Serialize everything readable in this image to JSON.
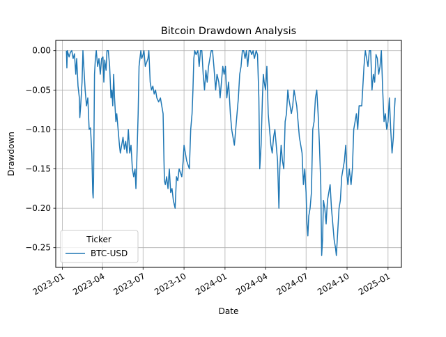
{
  "chart_data": {
    "type": "line",
    "title": "Bitcoin Drawdown Analysis",
    "xlabel": "Date",
    "ylabel": "Drawdown",
    "xlim": [
      "2022-12-17",
      "2025-01-31"
    ],
    "ylim": [
      -0.275,
      0.013
    ],
    "grid": true,
    "legend": {
      "title": "Ticker",
      "placement": "lower-left"
    },
    "x_ticks": [
      {
        "date": "2023-01-01",
        "label": "2023-01"
      },
      {
        "date": "2023-04-01",
        "label": "2023-04"
      },
      {
        "date": "2023-07-01",
        "label": "2023-07"
      },
      {
        "date": "2023-10-01",
        "label": "2023-10"
      },
      {
        "date": "2024-01-01",
        "label": "2024-01"
      },
      {
        "date": "2024-04-01",
        "label": "2024-04"
      },
      {
        "date": "2024-07-01",
        "label": "2024-07"
      },
      {
        "date": "2024-10-01",
        "label": "2024-10"
      },
      {
        "date": "2025-01-01",
        "label": "2025-01"
      }
    ],
    "y_ticks": [
      {
        "value": 0.0,
        "label": "0.00"
      },
      {
        "value": -0.05,
        "label": "−0.05"
      },
      {
        "value": -0.1,
        "label": "−0.10"
      },
      {
        "value": -0.15,
        "label": "−0.15"
      },
      {
        "value": -0.2,
        "label": "−0.20"
      },
      {
        "value": -0.25,
        "label": "−0.25"
      }
    ],
    "series": [
      {
        "name": "BTC-USD",
        "color": "#1f77b4",
        "points": [
          [
            "2023-01-10",
            0.0
          ],
          [
            "2023-01-11",
            -0.022
          ],
          [
            "2023-01-12",
            0.0
          ],
          [
            "2023-01-16",
            -0.008
          ],
          [
            "2023-01-19",
            -0.002
          ],
          [
            "2023-01-22",
            0.0
          ],
          [
            "2023-01-25",
            -0.01
          ],
          [
            "2023-01-28",
            -0.004
          ],
          [
            "2023-01-31",
            -0.03
          ],
          [
            "2023-02-02",
            -0.01
          ],
          [
            "2023-02-05",
            -0.045
          ],
          [
            "2023-02-08",
            -0.06
          ],
          [
            "2023-02-09",
            -0.085
          ],
          [
            "2023-02-11",
            -0.07
          ],
          [
            "2023-02-14",
            -0.04
          ],
          [
            "2023-02-16",
            0.0
          ],
          [
            "2023-02-18",
            -0.02
          ],
          [
            "2023-02-21",
            -0.05
          ],
          [
            "2023-02-24",
            -0.07
          ],
          [
            "2023-02-27",
            -0.06
          ],
          [
            "2023-03-02",
            -0.1
          ],
          [
            "2023-03-05",
            -0.098
          ],
          [
            "2023-03-08",
            -0.13
          ],
          [
            "2023-03-10",
            -0.18
          ],
          [
            "2023-03-11",
            -0.187
          ],
          [
            "2023-03-12",
            -0.16
          ],
          [
            "2023-03-14",
            -0.03
          ],
          [
            "2023-03-16",
            -0.01
          ],
          [
            "2023-03-18",
            0.0
          ],
          [
            "2023-03-21",
            -0.02
          ],
          [
            "2023-03-24",
            -0.01
          ],
          [
            "2023-03-27",
            -0.03
          ],
          [
            "2023-03-30",
            -0.01
          ],
          [
            "2023-04-02",
            -0.008
          ],
          [
            "2023-04-04",
            -0.04
          ],
          [
            "2023-04-06",
            -0.012
          ],
          [
            "2023-04-09",
            -0.025
          ],
          [
            "2023-04-11",
            0.0
          ],
          [
            "2023-04-14",
            0.0
          ],
          [
            "2023-04-17",
            -0.02
          ],
          [
            "2023-04-20",
            -0.06
          ],
          [
            "2023-04-22",
            -0.05
          ],
          [
            "2023-04-24",
            -0.07
          ],
          [
            "2023-04-26",
            -0.03
          ],
          [
            "2023-04-28",
            -0.06
          ],
          [
            "2023-05-01",
            -0.09
          ],
          [
            "2023-05-03",
            -0.08
          ],
          [
            "2023-05-06",
            -0.1
          ],
          [
            "2023-05-09",
            -0.12
          ],
          [
            "2023-05-11",
            -0.13
          ],
          [
            "2023-05-14",
            -0.12
          ],
          [
            "2023-05-17",
            -0.11
          ],
          [
            "2023-05-20",
            -0.125
          ],
          [
            "2023-05-23",
            -0.115
          ],
          [
            "2023-05-26",
            -0.13
          ],
          [
            "2023-05-29",
            -0.1
          ],
          [
            "2023-06-01",
            -0.13
          ],
          [
            "2023-06-04",
            -0.12
          ],
          [
            "2023-06-07",
            -0.15
          ],
          [
            "2023-06-10",
            -0.16
          ],
          [
            "2023-06-13",
            -0.15
          ],
          [
            "2023-06-15",
            -0.175
          ],
          [
            "2023-06-17",
            -0.14
          ],
          [
            "2023-06-20",
            -0.08
          ],
          [
            "2023-06-22",
            -0.02
          ],
          [
            "2023-06-24",
            -0.01
          ],
          [
            "2023-06-26",
            0.0
          ],
          [
            "2023-06-28",
            -0.01
          ],
          [
            "2023-07-01",
            -0.005
          ],
          [
            "2023-07-03",
            0.0
          ],
          [
            "2023-07-06",
            -0.02
          ],
          [
            "2023-07-09",
            -0.015
          ],
          [
            "2023-07-12",
            -0.01
          ],
          [
            "2023-07-14",
            0.0
          ],
          [
            "2023-07-17",
            -0.04
          ],
          [
            "2023-07-20",
            -0.05
          ],
          [
            "2023-07-23",
            -0.045
          ],
          [
            "2023-07-26",
            -0.055
          ],
          [
            "2023-07-29",
            -0.05
          ],
          [
            "2023-08-01",
            -0.06
          ],
          [
            "2023-08-05",
            -0.065
          ],
          [
            "2023-08-09",
            -0.06
          ],
          [
            "2023-08-12",
            -0.07
          ],
          [
            "2023-08-15",
            -0.08
          ],
          [
            "2023-08-17",
            -0.14
          ],
          [
            "2023-08-18",
            -0.165
          ],
          [
            "2023-08-20",
            -0.17
          ],
          [
            "2023-08-23",
            -0.16
          ],
          [
            "2023-08-26",
            -0.175
          ],
          [
            "2023-08-29",
            -0.15
          ],
          [
            "2023-09-01",
            -0.18
          ],
          [
            "2023-09-04",
            -0.175
          ],
          [
            "2023-09-07",
            -0.19
          ],
          [
            "2023-09-11",
            -0.2
          ],
          [
            "2023-09-14",
            -0.16
          ],
          [
            "2023-09-17",
            -0.165
          ],
          [
            "2023-09-20",
            -0.15
          ],
          [
            "2023-09-23",
            -0.155
          ],
          [
            "2023-09-26",
            -0.16
          ],
          [
            "2023-09-29",
            -0.14
          ],
          [
            "2023-10-01",
            -0.12
          ],
          [
            "2023-10-04",
            -0.13
          ],
          [
            "2023-10-07",
            -0.14
          ],
          [
            "2023-10-10",
            -0.145
          ],
          [
            "2023-10-13",
            -0.15
          ],
          [
            "2023-10-16",
            -0.1
          ],
          [
            "2023-10-19",
            -0.08
          ],
          [
            "2023-10-21",
            -0.05
          ],
          [
            "2023-10-23",
            -0.01
          ],
          [
            "2023-10-25",
            0.0
          ],
          [
            "2023-10-28",
            -0.005
          ],
          [
            "2023-11-01",
            0.0
          ],
          [
            "2023-11-04",
            -0.02
          ],
          [
            "2023-11-07",
            0.0
          ],
          [
            "2023-11-10",
            0.0
          ],
          [
            "2023-11-13",
            -0.03
          ],
          [
            "2023-11-16",
            -0.05
          ],
          [
            "2023-11-19",
            -0.025
          ],
          [
            "2023-11-22",
            -0.04
          ],
          [
            "2023-11-25",
            -0.02
          ],
          [
            "2023-11-28",
            -0.01
          ],
          [
            "2023-12-01",
            0.0
          ],
          [
            "2023-12-04",
            0.0
          ],
          [
            "2023-12-07",
            -0.02
          ],
          [
            "2023-12-11",
            -0.05
          ],
          [
            "2023-12-14",
            -0.03
          ],
          [
            "2023-12-18",
            -0.04
          ],
          [
            "2023-12-21",
            -0.06
          ],
          [
            "2023-12-24",
            -0.04
          ],
          [
            "2023-12-27",
            -0.02
          ],
          [
            "2023-12-30",
            -0.03
          ],
          [
            "2024-01-02",
            -0.02
          ],
          [
            "2024-01-05",
            -0.06
          ],
          [
            "2024-01-09",
            -0.04
          ],
          [
            "2024-01-11",
            -0.06
          ],
          [
            "2024-01-13",
            -0.08
          ],
          [
            "2024-01-16",
            -0.1
          ],
          [
            "2024-01-19",
            -0.11
          ],
          [
            "2024-01-22",
            -0.12
          ],
          [
            "2024-01-25",
            -0.1
          ],
          [
            "2024-01-28",
            -0.08
          ],
          [
            "2024-01-31",
            -0.06
          ],
          [
            "2024-02-03",
            -0.03
          ],
          [
            "2024-02-06",
            -0.02
          ],
          [
            "2024-02-09",
            0.0
          ],
          [
            "2024-02-12",
            0.0
          ],
          [
            "2024-02-15",
            -0.01
          ],
          [
            "2024-02-18",
            0.0
          ],
          [
            "2024-02-21",
            -0.02
          ],
          [
            "2024-02-24",
            0.0
          ],
          [
            "2024-02-27",
            0.0
          ],
          [
            "2024-03-01",
            -0.005
          ],
          [
            "2024-03-04",
            0.0
          ],
          [
            "2024-03-07",
            -0.01
          ],
          [
            "2024-03-11",
            0.0
          ],
          [
            "2024-03-14",
            -0.005
          ],
          [
            "2024-03-17",
            -0.06
          ],
          [
            "2024-03-19",
            -0.15
          ],
          [
            "2024-03-22",
            -0.12
          ],
          [
            "2024-03-25",
            -0.06
          ],
          [
            "2024-03-27",
            -0.03
          ],
          [
            "2024-03-29",
            -0.04
          ],
          [
            "2024-04-01",
            -0.05
          ],
          [
            "2024-04-04",
            -0.02
          ],
          [
            "2024-04-07",
            -0.08
          ],
          [
            "2024-04-10",
            -0.1
          ],
          [
            "2024-04-13",
            -0.12
          ],
          [
            "2024-04-16",
            -0.13
          ],
          [
            "2024-04-19",
            -0.11
          ],
          [
            "2024-04-22",
            -0.1
          ],
          [
            "2024-04-25",
            -0.12
          ],
          [
            "2024-04-28",
            -0.14
          ],
          [
            "2024-05-01",
            -0.2
          ],
          [
            "2024-05-03",
            -0.15
          ],
          [
            "2024-05-06",
            -0.12
          ],
          [
            "2024-05-09",
            -0.14
          ],
          [
            "2024-05-12",
            -0.15
          ],
          [
            "2024-05-15",
            -0.09
          ],
          [
            "2024-05-18",
            -0.08
          ],
          [
            "2024-05-21",
            -0.05
          ],
          [
            "2024-05-23",
            -0.06
          ],
          [
            "2024-05-26",
            -0.07
          ],
          [
            "2024-05-29",
            -0.08
          ],
          [
            "2024-06-01",
            -0.07
          ],
          [
            "2024-06-04",
            -0.05
          ],
          [
            "2024-06-07",
            -0.06
          ],
          [
            "2024-06-10",
            -0.07
          ],
          [
            "2024-06-13",
            -0.09
          ],
          [
            "2024-06-16",
            -0.11
          ],
          [
            "2024-06-19",
            -0.12
          ],
          [
            "2024-06-22",
            -0.13
          ],
          [
            "2024-06-25",
            -0.17
          ],
          [
            "2024-06-28",
            -0.15
          ],
          [
            "2024-07-01",
            -0.18
          ],
          [
            "2024-07-03",
            -0.22
          ],
          [
            "2024-07-05",
            -0.235
          ],
          [
            "2024-07-07",
            -0.21
          ],
          [
            "2024-07-10",
            -0.2
          ],
          [
            "2024-07-13",
            -0.18
          ],
          [
            "2024-07-16",
            -0.1
          ],
          [
            "2024-07-19",
            -0.09
          ],
          [
            "2024-07-22",
            -0.06
          ],
          [
            "2024-07-25",
            -0.05
          ],
          [
            "2024-07-28",
            -0.08
          ],
          [
            "2024-07-31",
            -0.12
          ],
          [
            "2024-08-03",
            -0.17
          ],
          [
            "2024-08-05",
            -0.26
          ],
          [
            "2024-08-07",
            -0.24
          ],
          [
            "2024-08-09",
            -0.19
          ],
          [
            "2024-08-12",
            -0.2
          ],
          [
            "2024-08-15",
            -0.22
          ],
          [
            "2024-08-18",
            -0.19
          ],
          [
            "2024-08-21",
            -0.18
          ],
          [
            "2024-08-24",
            -0.17
          ],
          [
            "2024-08-27",
            -0.2
          ],
          [
            "2024-08-30",
            -0.22
          ],
          [
            "2024-09-02",
            -0.24
          ],
          [
            "2024-09-05",
            -0.25
          ],
          [
            "2024-09-07",
            -0.26
          ],
          [
            "2024-09-10",
            -0.23
          ],
          [
            "2024-09-13",
            -0.2
          ],
          [
            "2024-09-16",
            -0.19
          ],
          [
            "2024-09-19",
            -0.16
          ],
          [
            "2024-09-22",
            -0.15
          ],
          [
            "2024-09-25",
            -0.14
          ],
          [
            "2024-09-28",
            -0.12
          ],
          [
            "2024-10-01",
            -0.16
          ],
          [
            "2024-10-03",
            -0.17
          ],
          [
            "2024-10-06",
            -0.15
          ],
          [
            "2024-10-10",
            -0.17
          ],
          [
            "2024-10-13",
            -0.15
          ],
          [
            "2024-10-16",
            -0.1
          ],
          [
            "2024-10-19",
            -0.09
          ],
          [
            "2024-10-22",
            -0.08
          ],
          [
            "2024-10-25",
            -0.1
          ],
          [
            "2024-10-28",
            -0.07
          ],
          [
            "2024-10-31",
            -0.07
          ],
          [
            "2024-11-03",
            -0.07
          ],
          [
            "2024-11-06",
            -0.04
          ],
          [
            "2024-11-08",
            -0.02
          ],
          [
            "2024-11-11",
            0.0
          ],
          [
            "2024-11-14",
            -0.01
          ],
          [
            "2024-11-17",
            -0.02
          ],
          [
            "2024-11-20",
            0.0
          ],
          [
            "2024-11-23",
            0.0
          ],
          [
            "2024-11-26",
            -0.05
          ],
          [
            "2024-11-29",
            -0.03
          ],
          [
            "2024-12-02",
            -0.04
          ],
          [
            "2024-12-05",
            -0.005
          ],
          [
            "2024-12-08",
            -0.01
          ],
          [
            "2024-12-11",
            -0.03
          ],
          [
            "2024-12-14",
            -0.02
          ],
          [
            "2024-12-17",
            0.0
          ],
          [
            "2024-12-20",
            -0.05
          ],
          [
            "2024-12-23",
            -0.09
          ],
          [
            "2024-12-26",
            -0.08
          ],
          [
            "2024-12-29",
            -0.1
          ],
          [
            "2025-01-01",
            -0.09
          ],
          [
            "2025-01-04",
            -0.06
          ],
          [
            "2025-01-07",
            -0.1
          ],
          [
            "2025-01-10",
            -0.13
          ],
          [
            "2025-01-13",
            -0.11
          ],
          [
            "2025-01-15",
            -0.08
          ],
          [
            "2025-01-17",
            -0.06
          ]
        ]
      }
    ]
  }
}
